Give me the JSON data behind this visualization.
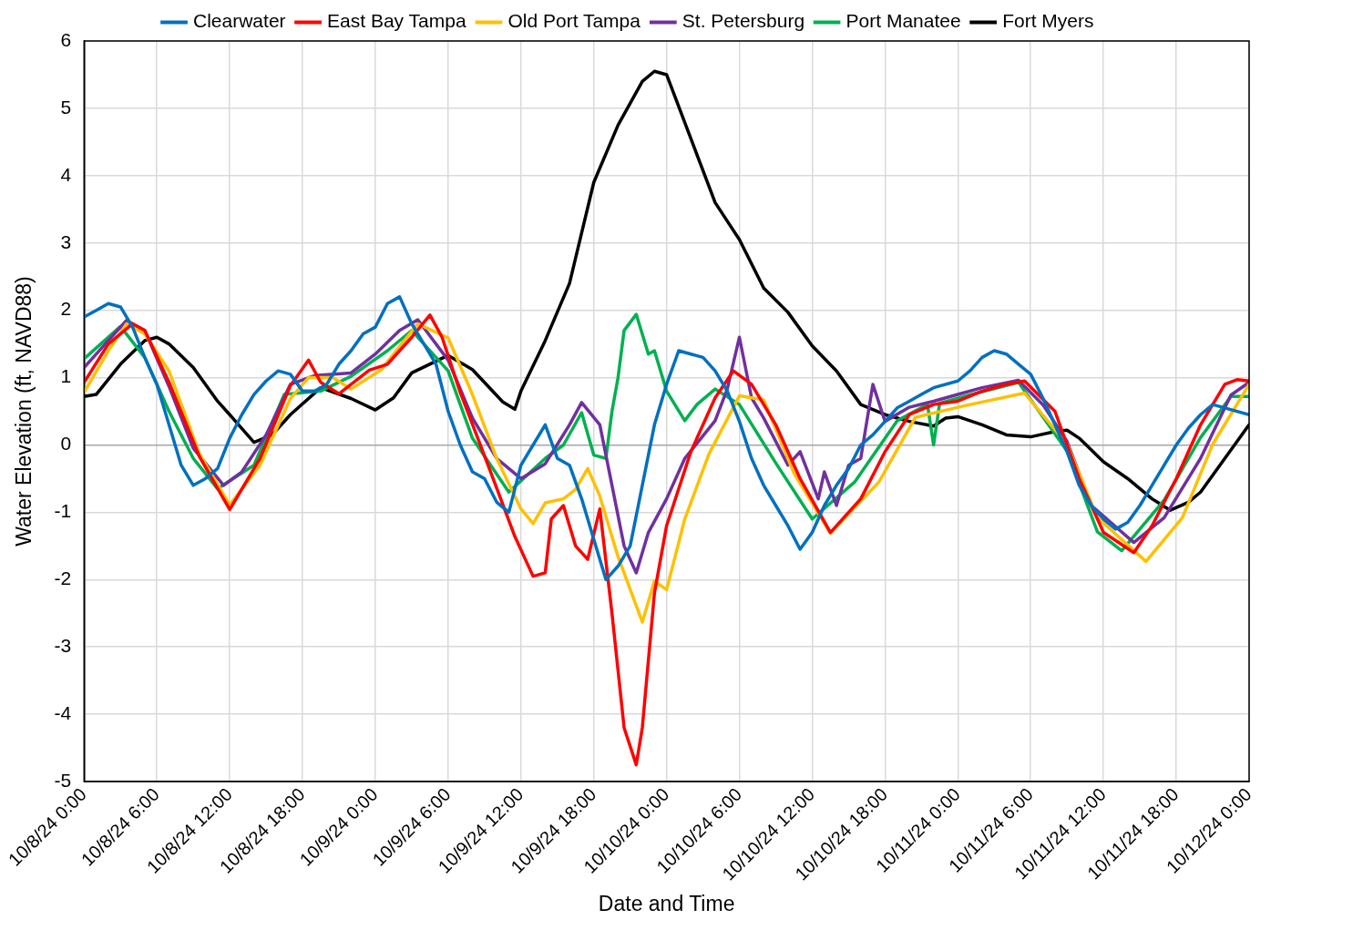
{
  "chart_data": {
    "type": "line",
    "xlabel": "Date and Time",
    "ylabel": "Water Elevation (ft, NAVD88)",
    "legend": "top",
    "grid": true,
    "marker": "none",
    "line_style": "solid",
    "xlim": [
      "--10-08T00:00",
      "--10-12T00:00"
    ],
    "xticks": [
      {
        "value": "--10-08T00:00",
        "label": "10/8/24 0:00"
      },
      {
        "value": "--10-08T06:00",
        "label": "10/8/24 6:00"
      },
      {
        "value": "--10-08T12:00",
        "label": "10/8/24 12:00"
      },
      {
        "value": "--10-08T18:00",
        "label": "10/8/24 18:00"
      },
      {
        "value": "--10-09T00:00",
        "label": "10/9/24 0:00"
      },
      {
        "value": "--10-09T06:00",
        "label": "10/9/24 6:00"
      },
      {
        "value": "--10-09T12:00",
        "label": "10/9/24 12:00"
      },
      {
        "value": "--10-09T18:00",
        "label": "10/9/24 18:00"
      },
      {
        "value": "--10-10T00:00",
        "label": "10/10/24 0:00"
      },
      {
        "value": "--10-10T06:00",
        "label": "10/10/24 6:00"
      },
      {
        "value": "--10-10T12:00",
        "label": "10/10/24 12:00"
      },
      {
        "value": "--10-10T18:00",
        "label": "10/10/24 18:00"
      },
      {
        "value": "--10-11T00:00",
        "label": "10/11/24 0:00"
      },
      {
        "value": "--10-11T06:00",
        "label": "10/11/24 6:00"
      },
      {
        "value": "--10-11T12:00",
        "label": "10/11/24 12:00"
      },
      {
        "value": "--10-11T18:00",
        "label": "10/11/24 18:00"
      },
      {
        "value": "--10-12T00:00",
        "label": "10/12/24 0:00"
      }
    ],
    "ylim": [
      -5,
      6
    ],
    "yticks": [
      -5,
      -4,
      -3,
      -2,
      -1,
      0,
      1,
      2,
      3,
      4,
      5,
      6
    ],
    "series": [
      {
        "name": "Clearwater",
        "color": "#0070c0",
        "x": [
          "--10-08T00:00",
          "--10-08T01:00",
          "--10-08T02:00",
          "--10-08T03:00",
          "--10-08T04:00",
          "--10-08T05:00",
          "--10-08T06:00",
          "--10-08T07:00",
          "--10-08T08:00",
          "--10-08T09:00",
          "--10-08T10:00",
          "--10-08T11:00",
          "--10-08T12:00",
          "--10-08T13:00",
          "--10-08T14:00",
          "--10-08T15:00",
          "--10-08T16:00",
          "--10-08T17:00",
          "--10-08T18:00",
          "--10-08T19:00",
          "--10-08T20:00",
          "--10-08T21:00",
          "--10-08T22:00",
          "--10-08T23:00",
          "--10-09T00:00",
          "--10-09T01:00",
          "--10-09T02:00",
          "--10-09T03:00",
          "--10-09T04:00",
          "--10-09T05:00",
          "--10-09T06:00",
          "--10-09T07:00",
          "--10-09T08:00",
          "--10-09T09:00",
          "--10-09T10:00",
          "--10-09T11:00",
          "--10-09T12:00",
          "--10-09T13:00",
          "--10-09T14:00",
          "--10-09T15:00",
          "--10-09T16:00",
          "--10-09T17:00",
          "--10-09T18:00",
          "--10-09T19:00",
          "--10-09T20:00",
          "--10-09T21:00",
          "--10-09T22:00",
          "--10-09T23:00",
          "--10-10T00:00",
          "--10-10T01:00",
          "--10-10T02:00",
          "--10-10T03:00",
          "--10-10T04:00",
          "--10-10T05:00",
          "--10-10T06:00",
          "--10-10T07:00",
          "--10-10T08:00",
          "--10-10T09:00",
          "--10-10T10:00",
          "--10-10T11:00",
          "--10-10T12:00",
          "--10-10T13:00",
          "--10-10T14:00",
          "--10-10T15:00",
          "--10-10T16:00",
          "--10-10T17:00",
          "--10-10T18:00",
          "--10-10T19:00",
          "--10-10T20:00",
          "--10-10T22:00",
          "--10-11T00:00",
          "--10-11T01:00",
          "--10-11T02:00",
          "--10-11T03:00",
          "--10-11T04:00",
          "--10-11T05:00",
          "--10-11T06:00",
          "--10-11T07:00",
          "--10-11T08:00",
          "--10-11T09:00",
          "--10-11T10:00",
          "--10-11T11:00",
          "--10-11T12:00",
          "--10-11T13:00",
          "--10-11T14:00",
          "--10-11T15:00",
          "--10-11T16:00",
          "--10-11T17:00",
          "--10-11T18:00",
          "--10-11T19:00",
          "--10-11T20:00",
          "--10-11T21:00",
          "--10-11T22:00",
          "--10-12T00:00"
        ],
        "values": [
          1.9,
          2.0,
          2.1,
          2.05,
          1.75,
          1.3,
          0.9,
          0.3,
          -0.3,
          -0.6,
          -0.5,
          -0.35,
          0.1,
          0.45,
          0.75,
          0.95,
          1.1,
          1.05,
          0.8,
          0.8,
          0.9,
          1.2,
          1.4,
          1.65,
          1.75,
          2.1,
          2.2,
          1.8,
          1.5,
          1.2,
          0.5,
          0.0,
          -0.4,
          -0.5,
          -0.85,
          -1.0,
          -0.3,
          0.0,
          0.3,
          -0.2,
          -0.3,
          -0.8,
          -1.4,
          -2.0,
          -1.8,
          -1.5,
          -0.6,
          0.3,
          0.9,
          1.4,
          1.35,
          1.3,
          1.1,
          0.8,
          0.35,
          -0.2,
          -0.6,
          -0.9,
          -1.2,
          -1.55,
          -1.3,
          -0.9,
          -0.6,
          -0.35,
          0.0,
          0.15,
          0.35,
          0.55,
          0.65,
          0.85,
          0.95,
          1.1,
          1.3,
          1.4,
          1.35,
          1.2,
          1.05,
          0.7,
          0.3,
          -0.1,
          -0.6,
          -0.9,
          -1.1,
          -1.25,
          -1.15,
          -0.9,
          -0.6,
          -0.3,
          0.0,
          0.25,
          0.45,
          0.6,
          0.55,
          0.45
        ]
      },
      {
        "name": "East Bay Tampa",
        "color": "#ff0000",
        "x": [
          "--10-08T00:00",
          "--10-08T02:00",
          "--10-08T04:00",
          "--10-08T05:00",
          "--10-08T07:00",
          "--10-08T09:30",
          "--10-08T12:00",
          "--10-08T14:30",
          "--10-08T17:00",
          "--10-08T18:30",
          "--10-08T19:30",
          "--10-08T21:00",
          "--10-08T23:30",
          "--10-09T01:00",
          "--10-09T03:00",
          "--10-09T04:30",
          "--10-09T05:30",
          "--10-09T07:00",
          "--10-09T09:30",
          "--10-09T11:30",
          "--10-09T13:00",
          "--10-09T14:00",
          "--10-09T14:30",
          "--10-09T15:30",
          "--10-09T16:30",
          "--10-09T17:30",
          "--10-09T18:30",
          "--10-09T19:30",
          "--10-09T20:30",
          "--10-09T21:30",
          "--10-09T22:00",
          "--10-09T23:00",
          "--10-10T00:00",
          "--10-10T02:00",
          "--10-10T04:00",
          "--10-10T05:30",
          "--10-10T07:00",
          "--10-10T09:00",
          "--10-10T11:00",
          "--10-10T13:30",
          "--10-10T16:00",
          "--10-10T18:00",
          "--10-10T20:00",
          "--10-10T22:00",
          "--10-11T00:00",
          "--10-11T02:00",
          "--10-11T04:00",
          "--10-11T05:30",
          "--10-11T08:00",
          "--10-11T10:00",
          "--10-11T12:00",
          "--10-11T14:30",
          "--10-11T16:00",
          "--10-11T18:00",
          "--10-11T20:00",
          "--10-11T22:00",
          "--10-11T23:00",
          "--10-12T00:00"
        ],
        "values": [
          0.93,
          1.5,
          1.8,
          1.7,
          0.93,
          -0.17,
          -0.96,
          -0.2,
          0.88,
          1.26,
          0.93,
          0.76,
          1.11,
          1.2,
          1.6,
          1.93,
          1.6,
          0.78,
          -0.4,
          -1.36,
          -1.95,
          -1.9,
          -1.1,
          -0.9,
          -1.5,
          -1.7,
          -0.95,
          -2.5,
          -4.2,
          -4.75,
          -4.2,
          -2.2,
          -1.2,
          -0.1,
          0.7,
          1.1,
          0.9,
          0.3,
          -0.5,
          -1.3,
          -0.8,
          -0.1,
          0.45,
          0.6,
          0.65,
          0.8,
          0.9,
          0.95,
          0.5,
          -0.5,
          -1.3,
          -1.6,
          -1.2,
          -0.5,
          0.3,
          0.9,
          0.97,
          0.95
        ]
      },
      {
        "name": "Old Port Tampa",
        "color": "#ffc000",
        "x": [
          "--10-08T00:00",
          "--10-08T02:00",
          "--10-08T03:30",
          "--10-08T05:00",
          "--10-08T07:00",
          "--10-08T09:30",
          "--10-08T12:00",
          "--10-08T14:30",
          "--10-08T17:00",
          "--10-08T18:30",
          "--10-08T20:30",
          "--10-08T22:00",
          "--10-09T00:30",
          "--10-09T03:30",
          "--10-09T06:00",
          "--10-09T08:00",
          "--10-09T10:00",
          "--10-09T12:00",
          "--10-09T13:00",
          "--10-09T14:00",
          "--10-09T15:30",
          "--10-09T16:30",
          "--10-09T17:30",
          "--10-09T18:30",
          "--10-09T20:00",
          "--10-09T22:00",
          "--10-09T23:00",
          "--10-10T00:00",
          "--10-10T01:30",
          "--10-10T03:30",
          "--10-10T06:00",
          "--10-10T08:00",
          "--10-10T10:30",
          "--10-10T13:30",
          "--10-10T17:30",
          "--10-10T20:30",
          "--10-11T00:30",
          "--10-11T05:30",
          "--10-11T09:00",
          "--10-11T11:30",
          "--10-11T15:30",
          "--10-11T18:30",
          "--10-11T21:00",
          "--10-12T00:00"
        ],
        "values": [
          0.78,
          1.4,
          1.8,
          1.65,
          1.1,
          -0.13,
          -0.89,
          -0.3,
          0.69,
          1.0,
          1.0,
          0.83,
          1.12,
          1.8,
          1.59,
          0.75,
          -0.2,
          -0.95,
          -1.17,
          -0.86,
          -0.8,
          -0.66,
          -0.35,
          -0.76,
          -1.66,
          -2.63,
          -2.02,
          -2.15,
          -1.1,
          -0.13,
          0.73,
          0.67,
          -0.42,
          -1.31,
          -0.55,
          0.41,
          0.58,
          0.77,
          0.01,
          -1.08,
          -1.73,
          -1.08,
          0.01,
          0.9
        ]
      },
      {
        "name": "St. Petersburg",
        "color": "#7030a0",
        "x": [
          "--10-08T00:00",
          "--10-08T02:00",
          "--10-08T03:30",
          "--10-08T05:00",
          "--10-08T07:00",
          "--10-08T09:00",
          "--10-08T11:30",
          "--10-08T13:00",
          "--10-08T15:00",
          "--10-08T17:00",
          "--10-08T19:00",
          "--10-08T22:00",
          "--10-09T00:00",
          "--10-09T02:00",
          "--10-09T03:30",
          "--10-09T06:00",
          "--10-09T08:00",
          "--10-09T10:00",
          "--10-09T12:00",
          "--10-09T14:00",
          "--10-09T16:00",
          "--10-09T17:00",
          "--10-09T18:30",
          "--10-09T19:30",
          "--10-09T20:30",
          "--10-09T21:30",
          "--10-09T22:30",
          "--10-10T00:00",
          "--10-10T01:30",
          "--10-10T04:00",
          "--10-10T05:00",
          "--10-10T06:00",
          "--10-10T07:00",
          "--10-10T08:00",
          "--10-10T10:00",
          "--10-10T11:00",
          "--10-10T12:30",
          "--10-10T13:00",
          "--10-10T14:00",
          "--10-10T15:00",
          "--10-10T16:00",
          "--10-10T17:00",
          "--10-10T18:00",
          "--10-10T20:00",
          "--10-10T22:00",
          "--10-11T00:00",
          "--10-11T02:00",
          "--10-11T05:00",
          "--10-11T07:00",
          "--10-11T09:00",
          "--10-11T11:00",
          "--10-11T14:30",
          "--10-11T17:00",
          "--10-11T20:00",
          "--10-11T22:30",
          "--10-12T00:00"
        ],
        "values": [
          1.15,
          1.55,
          1.85,
          1.7,
          0.87,
          -0.05,
          -0.6,
          -0.4,
          0.15,
          0.9,
          1.03,
          1.07,
          1.35,
          1.7,
          1.86,
          1.26,
          0.4,
          -0.2,
          -0.5,
          -0.28,
          0.3,
          0.63,
          0.3,
          -0.6,
          -1.5,
          -1.9,
          -1.3,
          -0.8,
          -0.2,
          0.36,
          0.83,
          1.6,
          0.7,
          0.4,
          -0.3,
          -0.1,
          -0.8,
          -0.4,
          -0.9,
          -0.3,
          -0.2,
          0.9,
          0.35,
          0.56,
          0.65,
          0.75,
          0.85,
          0.96,
          0.6,
          0.05,
          -0.9,
          -1.45,
          -1.08,
          -0.2,
          0.74,
          0.93
        ]
      },
      {
        "name": "Port Manatee",
        "color": "#00b050",
        "x": [
          "--10-08T00:00",
          "--10-08T03:00",
          "--10-08T05:00",
          "--10-08T07:00",
          "--10-08T09:00",
          "--10-08T11:00",
          "--10-08T14:00",
          "--10-08T16:30",
          "--10-08T19:30",
          "--10-08T22:00",
          "--10-09T01:00",
          "--10-09T03:00",
          "--10-09T06:00",
          "--10-09T08:00",
          "--10-09T11:00",
          "--10-09T14:00",
          "--10-09T15:30",
          "--10-09T17:00",
          "--10-09T18:00",
          "--10-09T19:00",
          "--10-09T19:30",
          "--10-09T20:00",
          "--10-09T20:30",
          "--10-09T21:30",
          "--10-09T22:30",
          "--10-09T23:00",
          "--10-10T00:00",
          "--10-10T01:30",
          "--10-10T02:30",
          "--10-10T04:00",
          "--10-10T06:00",
          "--10-10T09:00",
          "--10-10T12:00",
          "--10-10T15:30",
          "--10-10T19:00",
          "--10-10T21:30",
          "--10-10T22:00",
          "--10-10T22:30",
          "--10-11T00:30",
          "--10-11T05:00",
          "--10-11T09:00",
          "--10-11T11:30",
          "--10-11T13:30",
          "--10-11T17:00",
          "--10-11T20:00",
          "--10-11T22:30",
          "--10-12T00:00"
        ],
        "values": [
          1.28,
          1.76,
          1.3,
          0.5,
          -0.2,
          -0.65,
          -0.3,
          0.75,
          0.8,
          1.02,
          1.4,
          1.7,
          1.1,
          0.1,
          -0.7,
          -0.2,
          0.0,
          0.48,
          -0.15,
          -0.2,
          0.5,
          1.0,
          1.7,
          1.94,
          1.35,
          1.4,
          0.8,
          0.36,
          0.6,
          0.83,
          0.6,
          -0.27,
          -1.1,
          -0.55,
          0.36,
          0.6,
          0.0,
          0.62,
          0.72,
          0.93,
          -0.09,
          -1.29,
          -1.57,
          -0.82,
          0.11,
          0.72,
          0.72
        ]
      },
      {
        "name": "Fort Myers",
        "color": "#000000",
        "x": [
          "--10-08T00:00",
          "--10-08T01:00",
          "--10-08T03:00",
          "--10-08T05:00",
          "--10-08T06:00",
          "--10-08T07:00",
          "--10-08T09:00",
          "--10-08T11:00",
          "--10-08T12:00",
          "--10-08T14:00",
          "--10-08T15:30",
          "--10-08T17:00",
          "--10-08T19:30",
          "--10-08T22:00",
          "--10-09T00:00",
          "--10-09T01:30",
          "--10-09T03:00",
          "--10-09T06:00",
          "--10-09T08:00",
          "--10-09T10:30",
          "--10-09T11:30",
          "--10-09T12:00",
          "--10-09T14:00",
          "--10-09T16:00",
          "--10-09T18:00",
          "--10-09T20:00",
          "--10-09T22:00",
          "--10-09T23:00",
          "--10-10T00:00",
          "--10-10T02:00",
          "--10-10T04:00",
          "--10-10T06:00",
          "--10-10T08:00",
          "--10-10T10:00",
          "--10-10T12:00",
          "--10-10T14:00",
          "--10-10T16:00",
          "--10-10T18:00",
          "--10-10T20:00",
          "--10-10T22:00",
          "--10-10T23:00",
          "--10-11T00:00",
          "--10-11T02:00",
          "--10-11T04:00",
          "--10-11T06:00",
          "--10-11T08:00",
          "--10-11T09:00",
          "--10-11T10:00",
          "--10-11T12:00",
          "--10-11T14:00",
          "--10-11T16:00",
          "--10-11T17:30",
          "--10-11T19:00",
          "--10-11T20:00",
          "--10-11T22:00",
          "--10-12T00:00"
        ],
        "values": [
          0.72,
          0.75,
          1.2,
          1.55,
          1.6,
          1.5,
          1.15,
          0.65,
          0.45,
          0.04,
          0.15,
          0.45,
          0.85,
          0.69,
          0.52,
          0.7,
          1.07,
          1.33,
          1.12,
          0.64,
          0.53,
          0.8,
          1.55,
          2.4,
          3.9,
          4.75,
          5.4,
          5.55,
          5.5,
          4.55,
          3.6,
          3.05,
          2.33,
          1.97,
          1.47,
          1.1,
          0.6,
          0.45,
          0.35,
          0.28,
          0.4,
          0.42,
          0.3,
          0.15,
          0.12,
          0.2,
          0.22,
          0.1,
          -0.25,
          -0.5,
          -0.8,
          -0.97,
          -0.85,
          -0.7,
          -0.2,
          0.3
        ]
      }
    ]
  }
}
